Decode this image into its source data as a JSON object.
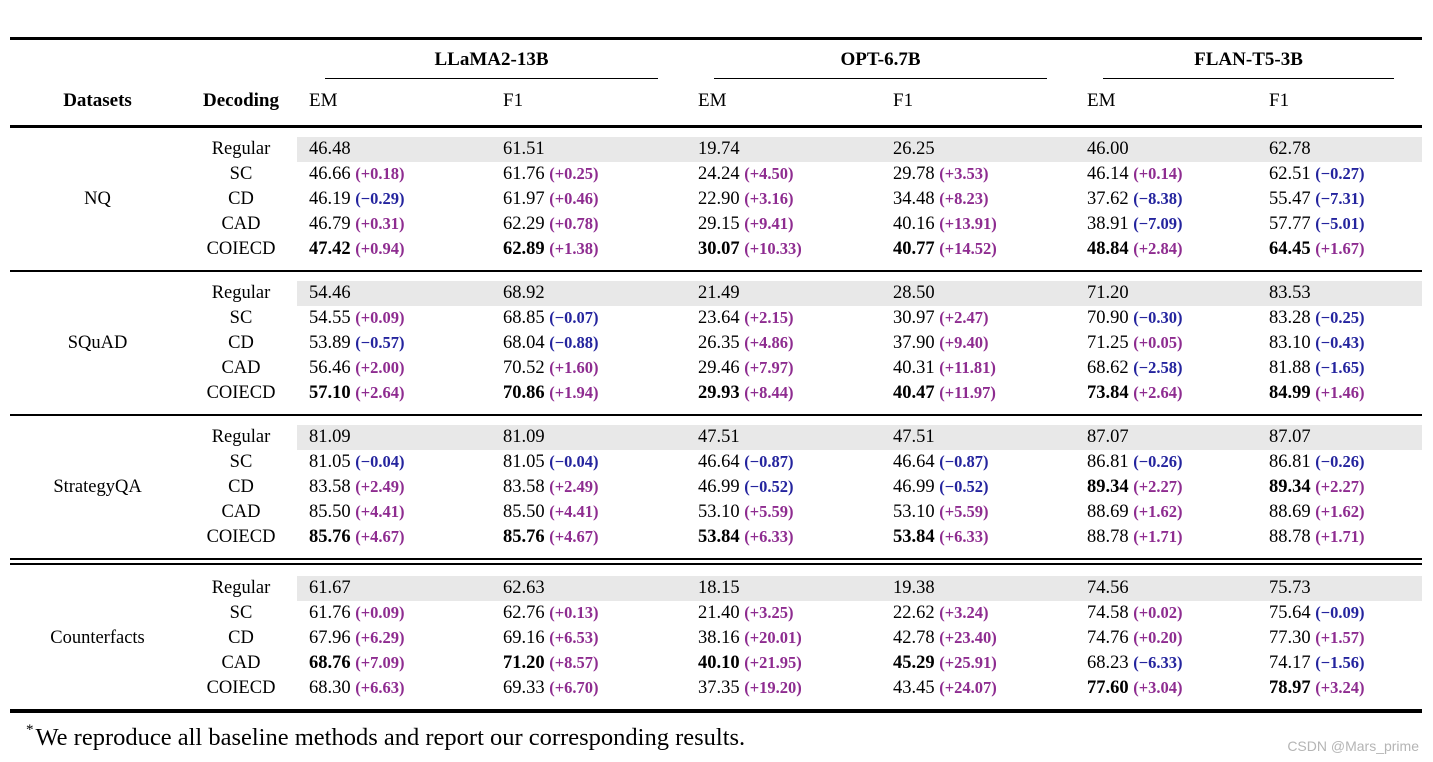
{
  "table": {
    "model_groups": [
      {
        "label": "LLaMA2-13B"
      },
      {
        "label": "OPT-6.7B"
      },
      {
        "label": "FLAN-T5-3B"
      }
    ],
    "col_headers": {
      "datasets": "Datasets",
      "decoding": "Decoding",
      "metrics": [
        "EM",
        "F1"
      ]
    },
    "sections": [
      {
        "dataset": "NQ",
        "divider": "none",
        "rows": [
          {
            "decoding": "Regular",
            "shaded": true,
            "cells": [
              {
                "v": "46.48"
              },
              {
                "v": "61.51"
              },
              {
                "v": "19.74"
              },
              {
                "v": "26.25"
              },
              {
                "v": "46.00"
              },
              {
                "v": "62.78"
              }
            ]
          },
          {
            "decoding": "SC",
            "cells": [
              {
                "v": "46.66",
                "d": "+0.18"
              },
              {
                "v": "61.76",
                "d": "+0.25"
              },
              {
                "v": "24.24",
                "d": "+4.50"
              },
              {
                "v": "29.78",
                "d": "+3.53"
              },
              {
                "v": "46.14",
                "d": "+0.14"
              },
              {
                "v": "62.51",
                "d": "−0.27"
              }
            ]
          },
          {
            "decoding": "CD",
            "cells": [
              {
                "v": "46.19",
                "d": "−0.29"
              },
              {
                "v": "61.97",
                "d": "+0.46"
              },
              {
                "v": "22.90",
                "d": "+3.16"
              },
              {
                "v": "34.48",
                "d": "+8.23"
              },
              {
                "v": "37.62",
                "d": "−8.38"
              },
              {
                "v": "55.47",
                "d": "−7.31"
              }
            ]
          },
          {
            "decoding": "CAD",
            "cells": [
              {
                "v": "46.79",
                "d": "+0.31"
              },
              {
                "v": "62.29",
                "d": "+0.78"
              },
              {
                "v": "29.15",
                "d": "+9.41"
              },
              {
                "v": "40.16",
                "d": "+13.91"
              },
              {
                "v": "38.91",
                "d": "−7.09"
              },
              {
                "v": "57.77",
                "d": "−5.01"
              }
            ]
          },
          {
            "decoding": "COIECD",
            "cells": [
              {
                "v": "47.42",
                "d": "+0.94",
                "b": true
              },
              {
                "v": "62.89",
                "d": "+1.38",
                "b": true
              },
              {
                "v": "30.07",
                "d": "+10.33",
                "b": true
              },
              {
                "v": "40.77",
                "d": "+14.52",
                "b": true
              },
              {
                "v": "48.84",
                "d": "+2.84",
                "b": true
              },
              {
                "v": "64.45",
                "d": "+1.67",
                "b": true
              }
            ]
          }
        ]
      },
      {
        "dataset": "SQuAD",
        "divider": "single",
        "rows": [
          {
            "decoding": "Regular",
            "shaded": true,
            "cells": [
              {
                "v": "54.46"
              },
              {
                "v": "68.92"
              },
              {
                "v": "21.49"
              },
              {
                "v": "28.50"
              },
              {
                "v": "71.20"
              },
              {
                "v": "83.53"
              }
            ]
          },
          {
            "decoding": "SC",
            "cells": [
              {
                "v": "54.55",
                "d": "+0.09"
              },
              {
                "v": "68.85",
                "d": "−0.07"
              },
              {
                "v": "23.64",
                "d": "+2.15"
              },
              {
                "v": "30.97",
                "d": "+2.47"
              },
              {
                "v": "70.90",
                "d": "−0.30"
              },
              {
                "v": "83.28",
                "d": "−0.25"
              }
            ]
          },
          {
            "decoding": "CD",
            "cells": [
              {
                "v": "53.89",
                "d": "−0.57"
              },
              {
                "v": "68.04",
                "d": "−0.88"
              },
              {
                "v": "26.35",
                "d": "+4.86"
              },
              {
                "v": "37.90",
                "d": "+9.40"
              },
              {
                "v": "71.25",
                "d": "+0.05"
              },
              {
                "v": "83.10",
                "d": "−0.43"
              }
            ]
          },
          {
            "decoding": "CAD",
            "cells": [
              {
                "v": "56.46",
                "d": "+2.00"
              },
              {
                "v": "70.52",
                "d": "+1.60"
              },
              {
                "v": "29.46",
                "d": "+7.97"
              },
              {
                "v": "40.31",
                "d": "+11.81"
              },
              {
                "v": "68.62",
                "d": "−2.58"
              },
              {
                "v": "81.88",
                "d": "−1.65"
              }
            ]
          },
          {
            "decoding": "COIECD",
            "cells": [
              {
                "v": "57.10",
                "d": "+2.64",
                "b": true
              },
              {
                "v": "70.86",
                "d": "+1.94",
                "b": true
              },
              {
                "v": "29.93",
                "d": "+8.44",
                "b": true
              },
              {
                "v": "40.47",
                "d": "+11.97",
                "b": true
              },
              {
                "v": "73.84",
                "d": "+2.64",
                "b": true
              },
              {
                "v": "84.99",
                "d": "+1.46",
                "b": true
              }
            ]
          }
        ]
      },
      {
        "dataset": "StrategyQA",
        "divider": "single",
        "rows": [
          {
            "decoding": "Regular",
            "shaded": true,
            "cells": [
              {
                "v": "81.09"
              },
              {
                "v": "81.09"
              },
              {
                "v": "47.51"
              },
              {
                "v": "47.51"
              },
              {
                "v": "87.07"
              },
              {
                "v": "87.07"
              }
            ]
          },
          {
            "decoding": "SC",
            "cells": [
              {
                "v": "81.05",
                "d": "−0.04"
              },
              {
                "v": "81.05",
                "d": "−0.04"
              },
              {
                "v": "46.64",
                "d": "−0.87"
              },
              {
                "v": "46.64",
                "d": "−0.87"
              },
              {
                "v": "86.81",
                "d": "−0.26"
              },
              {
                "v": "86.81",
                "d": "−0.26"
              }
            ]
          },
          {
            "decoding": "CD",
            "cells": [
              {
                "v": "83.58",
                "d": "+2.49"
              },
              {
                "v": "83.58",
                "d": "+2.49"
              },
              {
                "v": "46.99",
                "d": "−0.52"
              },
              {
                "v": "46.99",
                "d": "−0.52"
              },
              {
                "v": "89.34",
                "d": "+2.27",
                "b": true
              },
              {
                "v": "89.34",
                "d": "+2.27",
                "b": true
              }
            ]
          },
          {
            "decoding": "CAD",
            "cells": [
              {
                "v": "85.50",
                "d": "+4.41"
              },
              {
                "v": "85.50",
                "d": "+4.41"
              },
              {
                "v": "53.10",
                "d": "+5.59"
              },
              {
                "v": "53.10",
                "d": "+5.59"
              },
              {
                "v": "88.69",
                "d": "+1.62"
              },
              {
                "v": "88.69",
                "d": "+1.62"
              }
            ]
          },
          {
            "decoding": "COIECD",
            "cells": [
              {
                "v": "85.76",
                "d": "+4.67",
                "b": true
              },
              {
                "v": "85.76",
                "d": "+4.67",
                "b": true
              },
              {
                "v": "53.84",
                "d": "+6.33",
                "b": true
              },
              {
                "v": "53.84",
                "d": "+6.33",
                "b": true
              },
              {
                "v": "88.78",
                "d": "+1.71"
              },
              {
                "v": "88.78",
                "d": "+1.71"
              }
            ]
          }
        ]
      },
      {
        "dataset": "Counterfacts",
        "divider": "double",
        "rows": [
          {
            "decoding": "Regular",
            "shaded": true,
            "cells": [
              {
                "v": "61.67"
              },
              {
                "v": "62.63"
              },
              {
                "v": "18.15"
              },
              {
                "v": "19.38"
              },
              {
                "v": "74.56"
              },
              {
                "v": "75.73"
              }
            ]
          },
          {
            "decoding": "SC",
            "cells": [
              {
                "v": "61.76",
                "d": "+0.09"
              },
              {
                "v": "62.76",
                "d": "+0.13"
              },
              {
                "v": "21.40",
                "d": "+3.25"
              },
              {
                "v": "22.62",
                "d": "+3.24"
              },
              {
                "v": "74.58",
                "d": "+0.02"
              },
              {
                "v": "75.64",
                "d": "−0.09"
              }
            ]
          },
          {
            "decoding": "CD",
            "cells": [
              {
                "v": "67.96",
                "d": "+6.29"
              },
              {
                "v": "69.16",
                "d": "+6.53"
              },
              {
                "v": "38.16",
                "d": "+20.01"
              },
              {
                "v": "42.78",
                "d": "+23.40"
              },
              {
                "v": "74.76",
                "d": "+0.20"
              },
              {
                "v": "77.30",
                "d": "+1.57"
              }
            ]
          },
          {
            "decoding": "CAD",
            "cells": [
              {
                "v": "68.76",
                "d": "+7.09",
                "b": true
              },
              {
                "v": "71.20",
                "d": "+8.57",
                "b": true
              },
              {
                "v": "40.10",
                "d": "+21.95",
                "b": true
              },
              {
                "v": "45.29",
                "d": "+25.91",
                "b": true
              },
              {
                "v": "68.23",
                "d": "−6.33"
              },
              {
                "v": "74.17",
                "d": "−1.56"
              }
            ]
          },
          {
            "decoding": "COIECD",
            "cells": [
              {
                "v": "68.30",
                "d": "+6.63"
              },
              {
                "v": "69.33",
                "d": "+6.70"
              },
              {
                "v": "37.35",
                "d": "+19.20"
              },
              {
                "v": "43.45",
                "d": "+24.07"
              },
              {
                "v": "77.60",
                "d": "+3.04",
                "b": true
              },
              {
                "v": "78.97",
                "d": "+3.24",
                "b": true
              }
            ]
          }
        ]
      }
    ]
  },
  "footnote": {
    "marker": "*",
    "text": "We reproduce all baseline methods and report our corresponding results."
  },
  "watermark": "CSDN @Mars_prime",
  "colors": {
    "positive_delta": "#8E2C90",
    "negative_delta": "#24249E",
    "regular_row_shade": "#E8E8E8"
  }
}
